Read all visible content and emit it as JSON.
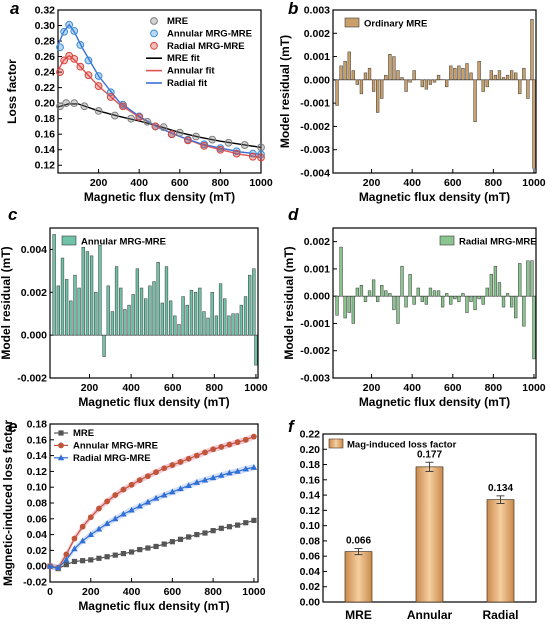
{
  "chart_data": [
    {
      "id": "a",
      "type": "scatter",
      "panel_label": "a",
      "xlabel": "Magnetic flux density (mT)",
      "ylabel": "Loss factor",
      "xlim": [
        0,
        1000
      ],
      "ylim": [
        0.11,
        0.32
      ],
      "xticks": [
        200,
        400,
        600,
        800,
        1000
      ],
      "yticks": [
        0.12,
        0.14,
        0.16,
        0.18,
        0.2,
        0.22,
        0.24,
        0.26,
        0.28,
        0.3,
        0.32
      ],
      "legend_position": "top-right",
      "series": [
        {
          "name": "MRE",
          "kind": "markers",
          "color": "#808080",
          "x": [
            10,
            40,
            80,
            130,
            200,
            280,
            360,
            440,
            520,
            600,
            680,
            760,
            840,
            920,
            1000
          ],
          "y": [
            0.196,
            0.2,
            0.2,
            0.196,
            0.19,
            0.184,
            0.18,
            0.176,
            0.169,
            0.162,
            0.157,
            0.153,
            0.149,
            0.146,
            0.143
          ]
        },
        {
          "name": "Annular MRG-MRE",
          "kind": "markers",
          "color": "#3d8fd6",
          "x": [
            10,
            30,
            55,
            80,
            110,
            150,
            200,
            260,
            320,
            400,
            480,
            560,
            640,
            720,
            800,
            880,
            960,
            1000
          ],
          "y": [
            0.272,
            0.292,
            0.301,
            0.293,
            0.275,
            0.255,
            0.235,
            0.214,
            0.198,
            0.183,
            0.17,
            0.16,
            0.153,
            0.147,
            0.142,
            0.138,
            0.135,
            0.134
          ]
        },
        {
          "name": "Radial MRG-MRE",
          "kind": "markers",
          "color": "#d9453d",
          "x": [
            10,
            30,
            55,
            80,
            110,
            150,
            200,
            260,
            320,
            400,
            480,
            560,
            640,
            720,
            800,
            880,
            960,
            1000
          ],
          "y": [
            0.24,
            0.255,
            0.261,
            0.257,
            0.247,
            0.236,
            0.222,
            0.208,
            0.196,
            0.182,
            0.17,
            0.16,
            0.152,
            0.145,
            0.14,
            0.135,
            0.131,
            0.13
          ]
        },
        {
          "name": "MRE fit",
          "kind": "line",
          "color": "#000000",
          "x": [
            0,
            50,
            100,
            200,
            300,
            400,
            500,
            600,
            700,
            800,
            900,
            1000
          ],
          "y": [
            0.195,
            0.199,
            0.199,
            0.19,
            0.183,
            0.177,
            0.17,
            0.162,
            0.156,
            0.151,
            0.147,
            0.143
          ]
        },
        {
          "name": "Annular fit",
          "kind": "line",
          "color": "#e05555",
          "x": [
            0,
            30,
            55,
            80,
            120,
            200,
            300,
            400,
            500,
            600,
            700,
            800,
            900,
            1000
          ],
          "y": [
            0.242,
            0.256,
            0.261,
            0.256,
            0.244,
            0.222,
            0.199,
            0.182,
            0.168,
            0.157,
            0.147,
            0.14,
            0.134,
            0.13
          ]
        },
        {
          "name": "Radial fit",
          "kind": "line",
          "color": "#3d6fd6",
          "x": [
            0,
            30,
            55,
            80,
            120,
            200,
            300,
            400,
            500,
            600,
            700,
            800,
            900,
            1000
          ],
          "y": [
            0.275,
            0.293,
            0.301,
            0.292,
            0.271,
            0.235,
            0.202,
            0.183,
            0.168,
            0.157,
            0.148,
            0.142,
            0.137,
            0.134
          ]
        }
      ]
    },
    {
      "id": "b",
      "type": "bar",
      "panel_label": "b",
      "xlabel": "Magnetic flux density (mT)",
      "ylabel": "Model residual (mT)",
      "xlim": [
        10,
        1010
      ],
      "ylim": [
        -0.004,
        0.003
      ],
      "xticks": [
        200,
        400,
        600,
        800,
        1000
      ],
      "yticks": [
        -0.004,
        -0.003,
        -0.002,
        -0.001,
        0.0,
        0.001,
        0.002,
        0.003
      ],
      "bar_color": "#c9a06a",
      "legend": "Ordinary MRE",
      "legend_position": "top-left",
      "x": [
        30,
        50,
        70,
        90,
        110,
        130,
        150,
        170,
        190,
        210,
        230,
        250,
        270,
        290,
        310,
        330,
        350,
        370,
        390,
        410,
        430,
        450,
        470,
        490,
        510,
        530,
        550,
        570,
        590,
        610,
        630,
        650,
        670,
        690,
        710,
        730,
        750,
        770,
        790,
        810,
        830,
        850,
        870,
        890,
        910,
        930,
        950,
        970,
        990,
        1000
      ],
      "values": [
        -0.0011,
        0.0006,
        0.0008,
        0.0012,
        0.0004,
        -0.0002,
        -0.0006,
        0.0003,
        0.0005,
        -0.0005,
        -0.0014,
        -0.0008,
        0.0002,
        0.0011,
        0.001,
        0.0004,
        0.0001,
        -0.0005,
        -0.0001,
        0.0004,
        0.0,
        -0.0003,
        -0.0004,
        -0.0002,
        -0.0001,
        0.0002,
        0.0,
        -0.0003,
        0.0006,
        0.0005,
        0.0006,
        0.0005,
        0.0007,
        0.0003,
        -0.0018,
        0.0008,
        -0.0005,
        -0.0003,
        0.0004,
        0.0002,
        0.0004,
        0.0001,
        0.0002,
        0.0004,
        0.0003,
        -0.0006,
        0.0005,
        -0.0008,
        0.0026,
        -0.0038
      ]
    },
    {
      "id": "c",
      "type": "bar",
      "panel_label": "c",
      "xlabel": "Magnetic flux density (mT)",
      "ylabel": "Model residual (mT)",
      "xlim": [
        10,
        1010
      ],
      "ylim": [
        -0.002,
        0.005
      ],
      "xticks": [
        200,
        400,
        600,
        800,
        1000
      ],
      "yticks": [
        -0.002,
        0.0,
        0.002,
        0.004
      ],
      "bar_color": "#6fc2a8",
      "legend": "Annular MRG-MRE",
      "legend_position": "top-left",
      "x": [
        30,
        50,
        70,
        90,
        110,
        130,
        150,
        170,
        190,
        210,
        230,
        250,
        270,
        290,
        310,
        330,
        350,
        370,
        390,
        410,
        430,
        450,
        470,
        490,
        510,
        530,
        550,
        570,
        590,
        610,
        630,
        650,
        670,
        690,
        710,
        730,
        750,
        770,
        790,
        810,
        830,
        850,
        870,
        890,
        910,
        930,
        950,
        970,
        990,
        1000
      ],
      "values": [
        0.0047,
        0.0023,
        0.0036,
        0.0026,
        0.0016,
        0.0028,
        0.0022,
        0.0041,
        0.0039,
        0.0037,
        0.002,
        0.0042,
        -0.001,
        0.0023,
        0.0011,
        0.0032,
        0.0022,
        0.0012,
        0.0014,
        0.0019,
        0.0031,
        0.0022,
        0.0017,
        0.0023,
        0.0025,
        0.0034,
        0.0015,
        0.0032,
        0.0016,
        0.0009,
        0.0005,
        0.0018,
        0.0014,
        0.0021,
        0.002,
        0.0022,
        0.0011,
        0.0008,
        0.002,
        0.0009,
        0.0024,
        0.0017,
        0.0009,
        0.001,
        0.001,
        0.0014,
        0.0018,
        0.0028,
        0.0031,
        -0.0014
      ]
    },
    {
      "id": "d",
      "type": "bar",
      "panel_label": "d",
      "xlabel": "Magnetic flux density (mT)",
      "ylabel": "Model residual (mT)",
      "xlim": [
        10,
        1010
      ],
      "ylim": [
        -0.003,
        0.0025
      ],
      "xticks": [
        200,
        400,
        600,
        800,
        1000
      ],
      "yticks": [
        -0.003,
        -0.002,
        -0.001,
        0.0,
        0.001,
        0.002
      ],
      "bar_color": "#8ac48e",
      "legend": "Radial MRG-MRE",
      "legend_position": "top-right",
      "x": [
        30,
        50,
        70,
        90,
        110,
        130,
        150,
        170,
        190,
        210,
        230,
        250,
        270,
        290,
        310,
        330,
        350,
        370,
        390,
        410,
        430,
        450,
        470,
        490,
        510,
        530,
        550,
        570,
        590,
        610,
        630,
        650,
        670,
        690,
        710,
        730,
        750,
        770,
        790,
        810,
        830,
        850,
        870,
        890,
        910,
        930,
        950,
        970,
        990,
        1000
      ],
      "values": [
        -0.0007,
        0.0018,
        -0.0008,
        -0.0006,
        -0.001,
        0.0003,
        0.0004,
        -0.0002,
        0.0002,
        0.0006,
        -0.0002,
        0.0004,
        0.0002,
        0.0001,
        -0.0005,
        -0.001,
        0.0011,
        -0.0004,
        0.0008,
        -0.0003,
        0.0003,
        -0.0002,
        -0.0003,
        0.0003,
        0.0002,
        0.0002,
        -0.0004,
        0.0001,
        -0.0003,
        -0.0001,
        -0.0002,
        0.0001,
        -0.0006,
        -0.0002,
        -0.0005,
        -0.0001,
        -0.0003,
        0.0003,
        0.0008,
        0.0011,
        0.0005,
        -0.0004,
        0.0001,
        -0.0004,
        -0.0008,
        0.0012,
        -0.0011,
        0.0013,
        0.0013,
        -0.0023
      ]
    },
    {
      "id": "e",
      "type": "line",
      "panel_label": "e",
      "xlabel": "Magnetic flux density (mT)",
      "ylabel": "Magnetic-induced loss factor",
      "xlim": [
        0,
        1020
      ],
      "ylim": [
        -0.02,
        0.18
      ],
      "xticks": [
        0,
        200,
        400,
        600,
        800,
        1000
      ],
      "yticks": [
        -0.02,
        0.0,
        0.02,
        0.04,
        0.06,
        0.08,
        0.1,
        0.12,
        0.14,
        0.16,
        0.18
      ],
      "legend_position": "top-left",
      "series": [
        {
          "name": "MRE",
          "marker": "square",
          "color": "#555555",
          "x": [
            0,
            40,
            80,
            120,
            160,
            200,
            240,
            280,
            320,
            360,
            400,
            440,
            480,
            520,
            560,
            600,
            640,
            680,
            720,
            760,
            800,
            840,
            880,
            920,
            960,
            1000
          ],
          "y": [
            0.0,
            -0.003,
            0.002,
            0.006,
            0.007,
            0.008,
            0.01,
            0.012,
            0.014,
            0.016,
            0.018,
            0.021,
            0.023,
            0.025,
            0.028,
            0.031,
            0.034,
            0.037,
            0.04,
            0.042,
            0.045,
            0.048,
            0.05,
            0.052,
            0.055,
            0.058
          ]
        },
        {
          "name": "Annular MRG-MRE",
          "marker": "circle",
          "color": "#c0553a",
          "x": [
            0,
            40,
            80,
            120,
            160,
            200,
            240,
            280,
            320,
            360,
            400,
            440,
            480,
            520,
            560,
            600,
            640,
            680,
            720,
            760,
            800,
            840,
            880,
            920,
            960,
            1000
          ],
          "y": [
            0.0,
            -0.002,
            0.015,
            0.035,
            0.05,
            0.062,
            0.073,
            0.082,
            0.09,
            0.097,
            0.103,
            0.109,
            0.114,
            0.119,
            0.124,
            0.128,
            0.132,
            0.136,
            0.14,
            0.144,
            0.148,
            0.151,
            0.154,
            0.157,
            0.16,
            0.164
          ]
        },
        {
          "name": "Radial MRG-MRE",
          "marker": "triangle",
          "color": "#2f6fd6",
          "x": [
            0,
            40,
            80,
            120,
            160,
            200,
            240,
            280,
            320,
            360,
            400,
            440,
            480,
            520,
            560,
            600,
            640,
            680,
            720,
            760,
            800,
            840,
            880,
            920,
            960,
            1000
          ],
          "y": [
            0.0,
            -0.002,
            0.008,
            0.022,
            0.032,
            0.04,
            0.047,
            0.054,
            0.06,
            0.066,
            0.071,
            0.076,
            0.081,
            0.086,
            0.09,
            0.094,
            0.098,
            0.102,
            0.106,
            0.109,
            0.112,
            0.115,
            0.118,
            0.12,
            0.123,
            0.125
          ]
        }
      ]
    },
    {
      "id": "f",
      "type": "bar",
      "panel_label": "f",
      "xlabel": "",
      "ylabel": "",
      "ylim": [
        0,
        0.22
      ],
      "yticks": [
        0.0,
        0.02,
        0.04,
        0.06,
        0.08,
        0.1,
        0.12,
        0.14,
        0.16,
        0.18,
        0.2,
        0.22
      ],
      "bar_color": "#e4a86a",
      "legend": "Mag-induced loss factor",
      "legend_position": "top-left",
      "categories": [
        "MRE",
        "Annular",
        "Radial"
      ],
      "values": [
        0.066,
        0.177,
        0.134
      ],
      "value_labels": [
        "0.066",
        "0.177",
        "0.134"
      ],
      "errors": [
        0.004,
        0.006,
        0.005
      ]
    }
  ]
}
